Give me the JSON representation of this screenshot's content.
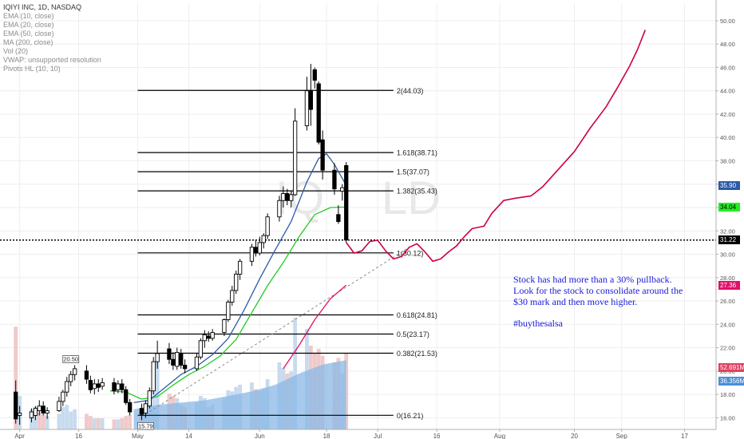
{
  "legend": {
    "title": "IQIYI INC, 1D, NASDAQ",
    "lines": [
      "EMA (10, close)",
      "EMA (20, close)",
      "EMA (50, close)",
      "MA (200, close)",
      "Vol (20)",
      "VWAP: unsupported resolution",
      "Pivots HL (10, 10)"
    ]
  },
  "watermark": "IQ",
  "watermark_right": "LD",
  "annotation": {
    "lines": [
      "Stock has had more than a 30% pullback.",
      "Look for the stock to consolidate around the",
      "$30 mark and then move higher."
    ],
    "hashtag": "#buythesalsa"
  },
  "price_tags": [
    {
      "id": "ema10",
      "label": "35.90",
      "value": 35.9,
      "bg": "#2a5aa8",
      "fg": "#ffffff"
    },
    {
      "id": "ema20",
      "label": "34.04",
      "value": 34.04,
      "bg": "#22ee22",
      "fg": "#000000"
    },
    {
      "id": "last",
      "label": "31.22",
      "value": 31.22,
      "bg": "#000000",
      "fg": "#ffffff"
    },
    {
      "id": "ema50",
      "label": "27.36",
      "value": 27.36,
      "bg": "#e0106a",
      "fg": "#ffffff"
    },
    {
      "id": "vol",
      "label": "52.691M",
      "value": 20.3,
      "bg": "#e04060",
      "fg": "#ffffff"
    },
    {
      "id": "volma",
      "label": "36.356M",
      "value": 19.15,
      "bg": "#4a8fd6",
      "fg": "#ffffff"
    }
  ],
  "colors": {
    "candle": "#000000",
    "ema10": "#2a5aa8",
    "ema20": "#22cc22",
    "ema50": "#e0106a",
    "projection": "#cc0044",
    "fib": "#000000",
    "volume_up": "#c8dbee",
    "volume_down": "#f0caca",
    "volume_ma_fill": "#8ab8e6",
    "trendline": "#8c8c8c"
  },
  "chart_data": {
    "type": "candlestick",
    "symbol": "IQIYI INC",
    "interval": "1D",
    "exchange": "NASDAQ",
    "ylim": [
      15.0,
      51.5
    ],
    "xlim_day": [
      -4,
      178
    ],
    "y_ticks": [
      "16.00",
      "18.00",
      "20.00",
      "22.00",
      "24.00",
      "26.00",
      "28.00",
      "30.00",
      "32.00",
      "34.00",
      "36.00",
      "38.00",
      "40.00",
      "42.00",
      "44.00",
      "46.00",
      "48.00",
      "50.00"
    ],
    "x_ticks": [
      {
        "label": "Apr",
        "day": 1
      },
      {
        "label": "16",
        "day": 16
      },
      {
        "label": "May",
        "day": 31
      },
      {
        "label": "14",
        "day": 44
      },
      {
        "label": "Jun",
        "day": 62
      },
      {
        "label": "18",
        "day": 79
      },
      {
        "label": "Jul",
        "day": 92
      },
      {
        "label": "16",
        "day": 107
      },
      {
        "label": "Aug",
        "day": 123
      },
      {
        "label": "20",
        "day": 142
      },
      {
        "label": "Sep",
        "day": 154
      },
      {
        "label": "17",
        "day": 170
      }
    ],
    "candles": [
      {
        "d": 0,
        "o": 18.2,
        "h": 19.2,
        "l": 15.5,
        "c": 15.9
      },
      {
        "d": 1,
        "o": 16.2,
        "h": 17.0,
        "l": 15.4,
        "c": 16.4
      },
      {
        "d": 4,
        "o": 16.0,
        "h": 16.8,
        "l": 15.6,
        "c": 16.5
      },
      {
        "d": 5,
        "o": 16.2,
        "h": 17.0,
        "l": 15.8,
        "c": 16.8
      },
      {
        "d": 6,
        "o": 16.6,
        "h": 17.5,
        "l": 16.2,
        "c": 17.0
      },
      {
        "d": 7,
        "o": 17.0,
        "h": 17.4,
        "l": 16.2,
        "c": 16.4
      },
      {
        "d": 8,
        "o": 16.4,
        "h": 16.9,
        "l": 15.9,
        "c": 16.6
      },
      {
        "d": 11,
        "o": 16.6,
        "h": 17.8,
        "l": 16.5,
        "c": 17.4
      },
      {
        "d": 12,
        "o": 17.4,
        "h": 18.4,
        "l": 17.0,
        "c": 18.2
      },
      {
        "d": 13,
        "o": 18.2,
        "h": 19.5,
        "l": 17.8,
        "c": 19.1
      },
      {
        "d": 14,
        "o": 19.1,
        "h": 20.0,
        "l": 18.7,
        "c": 19.7
      },
      {
        "d": 15,
        "o": 19.7,
        "h": 20.5,
        "l": 19.2,
        "c": 20.2
      },
      {
        "d": 18,
        "o": 20.0,
        "h": 20.5,
        "l": 18.9,
        "c": 19.3
      },
      {
        "d": 19,
        "o": 19.2,
        "h": 19.6,
        "l": 18.1,
        "c": 18.4
      },
      {
        "d": 20,
        "o": 18.5,
        "h": 19.3,
        "l": 18.0,
        "c": 18.9
      },
      {
        "d": 21,
        "o": 18.9,
        "h": 19.3,
        "l": 18.2,
        "c": 18.6
      },
      {
        "d": 22,
        "o": 18.7,
        "h": 19.4,
        "l": 18.4,
        "c": 19.0
      },
      {
        "d": 25,
        "o": 19.0,
        "h": 19.4,
        "l": 18.0,
        "c": 18.3
      },
      {
        "d": 26,
        "o": 18.4,
        "h": 19.2,
        "l": 18.1,
        "c": 18.9
      },
      {
        "d": 27,
        "o": 18.9,
        "h": 19.3,
        "l": 18.1,
        "c": 18.4
      },
      {
        "d": 28,
        "o": 18.4,
        "h": 18.7,
        "l": 17.1,
        "c": 17.3
      },
      {
        "d": 29,
        "o": 17.3,
        "h": 17.6,
        "l": 16.2,
        "c": 16.5
      },
      {
        "d": 32,
        "o": 16.8,
        "h": 17.2,
        "l": 15.8,
        "c": 16.3
      },
      {
        "d": 33,
        "o": 16.4,
        "h": 17.5,
        "l": 16.0,
        "c": 17.2
      },
      {
        "d": 34,
        "o": 17.0,
        "h": 18.6,
        "l": 16.8,
        "c": 18.3
      },
      {
        "d": 35,
        "o": 18.3,
        "h": 21.2,
        "l": 18.0,
        "c": 20.8
      },
      {
        "d": 36,
        "o": 20.8,
        "h": 22.6,
        "l": 20.2,
        "c": 21.5
      },
      {
        "d": 39,
        "o": 21.9,
        "h": 22.4,
        "l": 20.6,
        "c": 21.0
      },
      {
        "d": 40,
        "o": 21.0,
        "h": 21.6,
        "l": 20.1,
        "c": 20.5
      },
      {
        "d": 41,
        "o": 20.4,
        "h": 22.0,
        "l": 20.1,
        "c": 21.6
      },
      {
        "d": 42,
        "o": 21.5,
        "h": 21.9,
        "l": 20.2,
        "c": 20.5
      },
      {
        "d": 43,
        "o": 20.5,
        "h": 21.0,
        "l": 19.8,
        "c": 20.2
      },
      {
        "d": 46,
        "o": 20.2,
        "h": 21.5,
        "l": 20.0,
        "c": 21.2
      },
      {
        "d": 47,
        "o": 21.2,
        "h": 22.8,
        "l": 21.0,
        "c": 22.6
      },
      {
        "d": 48,
        "o": 22.6,
        "h": 23.5,
        "l": 22.0,
        "c": 23.1
      },
      {
        "d": 49,
        "o": 23.0,
        "h": 23.4,
        "l": 22.5,
        "c": 22.8
      },
      {
        "d": 50,
        "o": 22.8,
        "h": 23.6,
        "l": 22.6,
        "c": 23.3
      },
      {
        "d": 53,
        "o": 23.3,
        "h": 24.5,
        "l": 23.0,
        "c": 24.4
      },
      {
        "d": 54,
        "o": 24.4,
        "h": 26.1,
        "l": 24.2,
        "c": 25.9
      },
      {
        "d": 55,
        "o": 25.9,
        "h": 27.3,
        "l": 25.6,
        "c": 26.9
      },
      {
        "d": 56,
        "o": 26.9,
        "h": 28.6,
        "l": 26.6,
        "c": 28.3
      },
      {
        "d": 57,
        "o": 28.3,
        "h": 29.6,
        "l": 27.8,
        "c": 29.4
      },
      {
        "d": 60,
        "o": 29.4,
        "h": 30.9,
        "l": 29.0,
        "c": 30.6
      },
      {
        "d": 61,
        "o": 30.6,
        "h": 31.2,
        "l": 29.8,
        "c": 30.1
      },
      {
        "d": 62,
        "o": 30.1,
        "h": 31.5,
        "l": 29.9,
        "c": 31.0
      },
      {
        "d": 63,
        "o": 31.0,
        "h": 31.8,
        "l": 30.5,
        "c": 31.6
      },
      {
        "d": 64,
        "o": 31.6,
        "h": 33.5,
        "l": 31.3,
        "c": 33.2
      },
      {
        "d": 67,
        "o": 33.2,
        "h": 35.0,
        "l": 32.8,
        "c": 34.6
      },
      {
        "d": 68,
        "o": 34.6,
        "h": 35.8,
        "l": 34.0,
        "c": 35.2
      },
      {
        "d": 69,
        "o": 35.2,
        "h": 35.6,
        "l": 34.2,
        "c": 34.6
      },
      {
        "d": 70,
        "o": 34.6,
        "h": 35.4,
        "l": 34.0,
        "c": 35.1
      },
      {
        "d": 71,
        "o": 35.1,
        "h": 42.5,
        "l": 35.0,
        "c": 41.4
      },
      {
        "d": 74,
        "o": 41.0,
        "h": 45.2,
        "l": 40.6,
        "c": 44.0
      },
      {
        "d": 75,
        "o": 44.0,
        "h": 46.3,
        "l": 41.0,
        "c": 42.4
      },
      {
        "d": 76,
        "o": 45.8,
        "h": 46.0,
        "l": 44.2,
        "c": 44.9
      },
      {
        "d": 77,
        "o": 44.6,
        "h": 44.8,
        "l": 39.4,
        "c": 39.6
      },
      {
        "d": 78,
        "o": 39.8,
        "h": 40.6,
        "l": 36.4,
        "c": 37.2
      },
      {
        "d": 81,
        "o": 37.2,
        "h": 37.8,
        "l": 35.1,
        "c": 35.6
      },
      {
        "d": 82,
        "o": 33.4,
        "h": 34.2,
        "l": 32.6,
        "c": 32.8
      },
      {
        "d": 83,
        "o": 35.4,
        "h": 36.0,
        "l": 34.6,
        "c": 35.7
      },
      {
        "d": 84,
        "o": 37.6,
        "h": 37.9,
        "l": 31.0,
        "c": 31.22
      }
    ],
    "volumes": [
      {
        "d": 0,
        "v": 0.92,
        "up": false
      },
      {
        "d": 1,
        "v": 0.3,
        "up": true
      },
      {
        "d": 4,
        "v": 0.18,
        "up": true
      },
      {
        "d": 5,
        "v": 0.2,
        "up": true
      },
      {
        "d": 6,
        "v": 0.15,
        "up": false
      },
      {
        "d": 7,
        "v": 0.13,
        "up": false
      },
      {
        "d": 8,
        "v": 0.12,
        "up": true
      },
      {
        "d": 11,
        "v": 0.14,
        "up": true
      },
      {
        "d": 12,
        "v": 0.2,
        "up": true
      },
      {
        "d": 13,
        "v": 0.22,
        "up": true
      },
      {
        "d": 14,
        "v": 0.16,
        "up": true
      },
      {
        "d": 15,
        "v": 0.18,
        "up": true
      },
      {
        "d": 18,
        "v": 0.14,
        "up": false
      },
      {
        "d": 19,
        "v": 0.12,
        "up": false
      },
      {
        "d": 20,
        "v": 0.1,
        "up": true
      },
      {
        "d": 21,
        "v": 0.1,
        "up": false
      },
      {
        "d": 22,
        "v": 0.1,
        "up": true
      },
      {
        "d": 25,
        "v": 0.09,
        "up": false
      },
      {
        "d": 26,
        "v": 0.09,
        "up": true
      },
      {
        "d": 27,
        "v": 0.1,
        "up": false
      },
      {
        "d": 28,
        "v": 0.12,
        "up": false
      },
      {
        "d": 29,
        "v": 0.13,
        "up": false
      },
      {
        "d": 32,
        "v": 0.16,
        "up": false
      },
      {
        "d": 33,
        "v": 0.2,
        "up": true
      },
      {
        "d": 34,
        "v": 0.3,
        "up": true
      },
      {
        "d": 35,
        "v": 0.55,
        "up": true
      },
      {
        "d": 36,
        "v": 0.6,
        "up": true
      },
      {
        "d": 39,
        "v": 0.32,
        "up": false
      },
      {
        "d": 40,
        "v": 0.3,
        "up": false
      },
      {
        "d": 41,
        "v": 0.28,
        "up": true
      },
      {
        "d": 42,
        "v": 0.22,
        "up": false
      },
      {
        "d": 43,
        "v": 0.2,
        "up": false
      },
      {
        "d": 46,
        "v": 0.24,
        "up": true
      },
      {
        "d": 47,
        "v": 0.3,
        "up": true
      },
      {
        "d": 48,
        "v": 0.28,
        "up": true
      },
      {
        "d": 49,
        "v": 0.2,
        "up": false
      },
      {
        "d": 50,
        "v": 0.22,
        "up": true
      },
      {
        "d": 53,
        "v": 0.28,
        "up": true
      },
      {
        "d": 54,
        "v": 0.35,
        "up": true
      },
      {
        "d": 55,
        "v": 0.34,
        "up": true
      },
      {
        "d": 56,
        "v": 0.38,
        "up": true
      },
      {
        "d": 57,
        "v": 0.4,
        "up": true
      },
      {
        "d": 60,
        "v": 0.42,
        "up": true
      },
      {
        "d": 61,
        "v": 0.36,
        "up": false
      },
      {
        "d": 62,
        "v": 0.34,
        "up": true
      },
      {
        "d": 63,
        "v": 0.36,
        "up": true
      },
      {
        "d": 64,
        "v": 0.45,
        "up": true
      },
      {
        "d": 67,
        "v": 0.6,
        "up": true
      },
      {
        "d": 68,
        "v": 0.55,
        "up": true
      },
      {
        "d": 69,
        "v": 0.5,
        "up": false
      },
      {
        "d": 70,
        "v": 0.52,
        "up": true
      },
      {
        "d": 71,
        "v": 1.0,
        "up": true
      },
      {
        "d": 74,
        "v": 0.9,
        "up": true
      },
      {
        "d": 75,
        "v": 0.75,
        "up": false
      },
      {
        "d": 76,
        "v": 0.68,
        "up": false
      },
      {
        "d": 77,
        "v": 0.72,
        "up": false
      },
      {
        "d": 78,
        "v": 0.66,
        "up": false
      },
      {
        "d": 81,
        "v": 0.6,
        "up": false
      },
      {
        "d": 82,
        "v": 0.64,
        "up": false
      },
      {
        "d": 83,
        "v": 0.5,
        "up": true
      },
      {
        "d": 84,
        "v": 0.68,
        "up": false
      }
    ],
    "volume_ma": [
      {
        "d": 30,
        "v": 0.18
      },
      {
        "d": 36,
        "v": 0.22
      },
      {
        "d": 42,
        "v": 0.24
      },
      {
        "d": 48,
        "v": 0.26
      },
      {
        "d": 54,
        "v": 0.3
      },
      {
        "d": 60,
        "v": 0.34
      },
      {
        "d": 66,
        "v": 0.4
      },
      {
        "d": 72,
        "v": 0.5
      },
      {
        "d": 78,
        "v": 0.58
      },
      {
        "d": 84,
        "v": 0.62
      }
    ],
    "ema10": [
      {
        "d": 30,
        "v": 17.3
      },
      {
        "d": 34,
        "v": 17.5
      },
      {
        "d": 38,
        "v": 18.6
      },
      {
        "d": 42,
        "v": 19.7
      },
      {
        "d": 46,
        "v": 20.4
      },
      {
        "d": 50,
        "v": 21.4
      },
      {
        "d": 54,
        "v": 22.8
      },
      {
        "d": 58,
        "v": 25.2
      },
      {
        "d": 62,
        "v": 27.9
      },
      {
        "d": 66,
        "v": 30.4
      },
      {
        "d": 70,
        "v": 32.8
      },
      {
        "d": 74,
        "v": 36.2
      },
      {
        "d": 77,
        "v": 38.2
      },
      {
        "d": 79,
        "v": 38.6
      },
      {
        "d": 81,
        "v": 37.7
      },
      {
        "d": 84,
        "v": 35.9
      }
    ],
    "ema20": [
      {
        "d": 24,
        "v": 18.3
      },
      {
        "d": 28,
        "v": 18.2
      },
      {
        "d": 32,
        "v": 17.6
      },
      {
        "d": 36,
        "v": 17.8
      },
      {
        "d": 40,
        "v": 18.8
      },
      {
        "d": 44,
        "v": 19.7
      },
      {
        "d": 48,
        "v": 20.4
      },
      {
        "d": 52,
        "v": 21.3
      },
      {
        "d": 56,
        "v": 22.7
      },
      {
        "d": 60,
        "v": 25.0
      },
      {
        "d": 64,
        "v": 27.3
      },
      {
        "d": 68,
        "v": 29.3
      },
      {
        "d": 72,
        "v": 31.5
      },
      {
        "d": 76,
        "v": 33.4
      },
      {
        "d": 80,
        "v": 34.0
      },
      {
        "d": 84,
        "v": 34.04
      }
    ],
    "ema50": [
      {
        "d": 68,
        "v": 20.2
      },
      {
        "d": 72,
        "v": 22.2
      },
      {
        "d": 76,
        "v": 24.4
      },
      {
        "d": 80,
        "v": 26.2
      },
      {
        "d": 84,
        "v": 27.36
      }
    ],
    "trendline": [
      {
        "d": 33,
        "v": 16.3
      },
      {
        "d": 100,
        "v": 30.6
      }
    ],
    "last_price": 31.22,
    "fib_levels": [
      {
        "ratio": "2",
        "value": 44.03,
        "label": "2(44.03)"
      },
      {
        "ratio": "1.618",
        "value": 38.71,
        "label": "1.618(38.71)"
      },
      {
        "ratio": "1.5",
        "value": 37.07,
        "label": "1.5(37.07)"
      },
      {
        "ratio": "1.382",
        "value": 35.43,
        "label": "1.382(35.43)"
      },
      {
        "ratio": "1",
        "value": 30.12,
        "label": "1(30.12)"
      },
      {
        "ratio": "0.618",
        "value": 24.81,
        "label": "0.618(24.81)"
      },
      {
        "ratio": "0.5",
        "value": 23.17,
        "label": "0.5(23.17)"
      },
      {
        "ratio": "0.382",
        "value": 21.53,
        "label": "0.382(21.53)"
      },
      {
        "ratio": "0",
        "value": 16.21,
        "label": "0(16.21)"
      }
    ],
    "fib_range_day": [
      31,
      96
    ],
    "pivot_labels": [
      {
        "text": "20.50",
        "d": 14,
        "v": 20.5,
        "type": "high"
      },
      {
        "text": "15.79",
        "d": 33,
        "v": 15.79,
        "type": "low"
      }
    ],
    "projection": [
      {
        "d": 84,
        "v": 31.0
      },
      {
        "d": 86,
        "v": 30.1
      },
      {
        "d": 88,
        "v": 30.3
      },
      {
        "d": 90,
        "v": 31.1
      },
      {
        "d": 92,
        "v": 31.2
      },
      {
        "d": 94,
        "v": 30.3
      },
      {
        "d": 96,
        "v": 29.6
      },
      {
        "d": 98,
        "v": 29.8
      },
      {
        "d": 100,
        "v": 30.6
      },
      {
        "d": 102,
        "v": 30.9
      },
      {
        "d": 104,
        "v": 30.2
      },
      {
        "d": 106,
        "v": 29.4
      },
      {
        "d": 108,
        "v": 29.6
      },
      {
        "d": 110,
        "v": 30.2
      },
      {
        "d": 112,
        "v": 30.7
      },
      {
        "d": 114,
        "v": 31.5
      },
      {
        "d": 116,
        "v": 32.2
      },
      {
        "d": 119,
        "v": 32.4
      },
      {
        "d": 121,
        "v": 33.5
      },
      {
        "d": 124,
        "v": 34.6
      },
      {
        "d": 127,
        "v": 34.8
      },
      {
        "d": 131,
        "v": 35.0
      },
      {
        "d": 134,
        "v": 35.8
      },
      {
        "d": 138,
        "v": 37.3
      },
      {
        "d": 142,
        "v": 38.8
      },
      {
        "d": 146,
        "v": 40.8
      },
      {
        "d": 150,
        "v": 42.6
      },
      {
        "d": 153,
        "v": 44.3
      },
      {
        "d": 156,
        "v": 46.1
      },
      {
        "d": 158,
        "v": 47.5
      },
      {
        "d": 160,
        "v": 49.2
      }
    ]
  }
}
